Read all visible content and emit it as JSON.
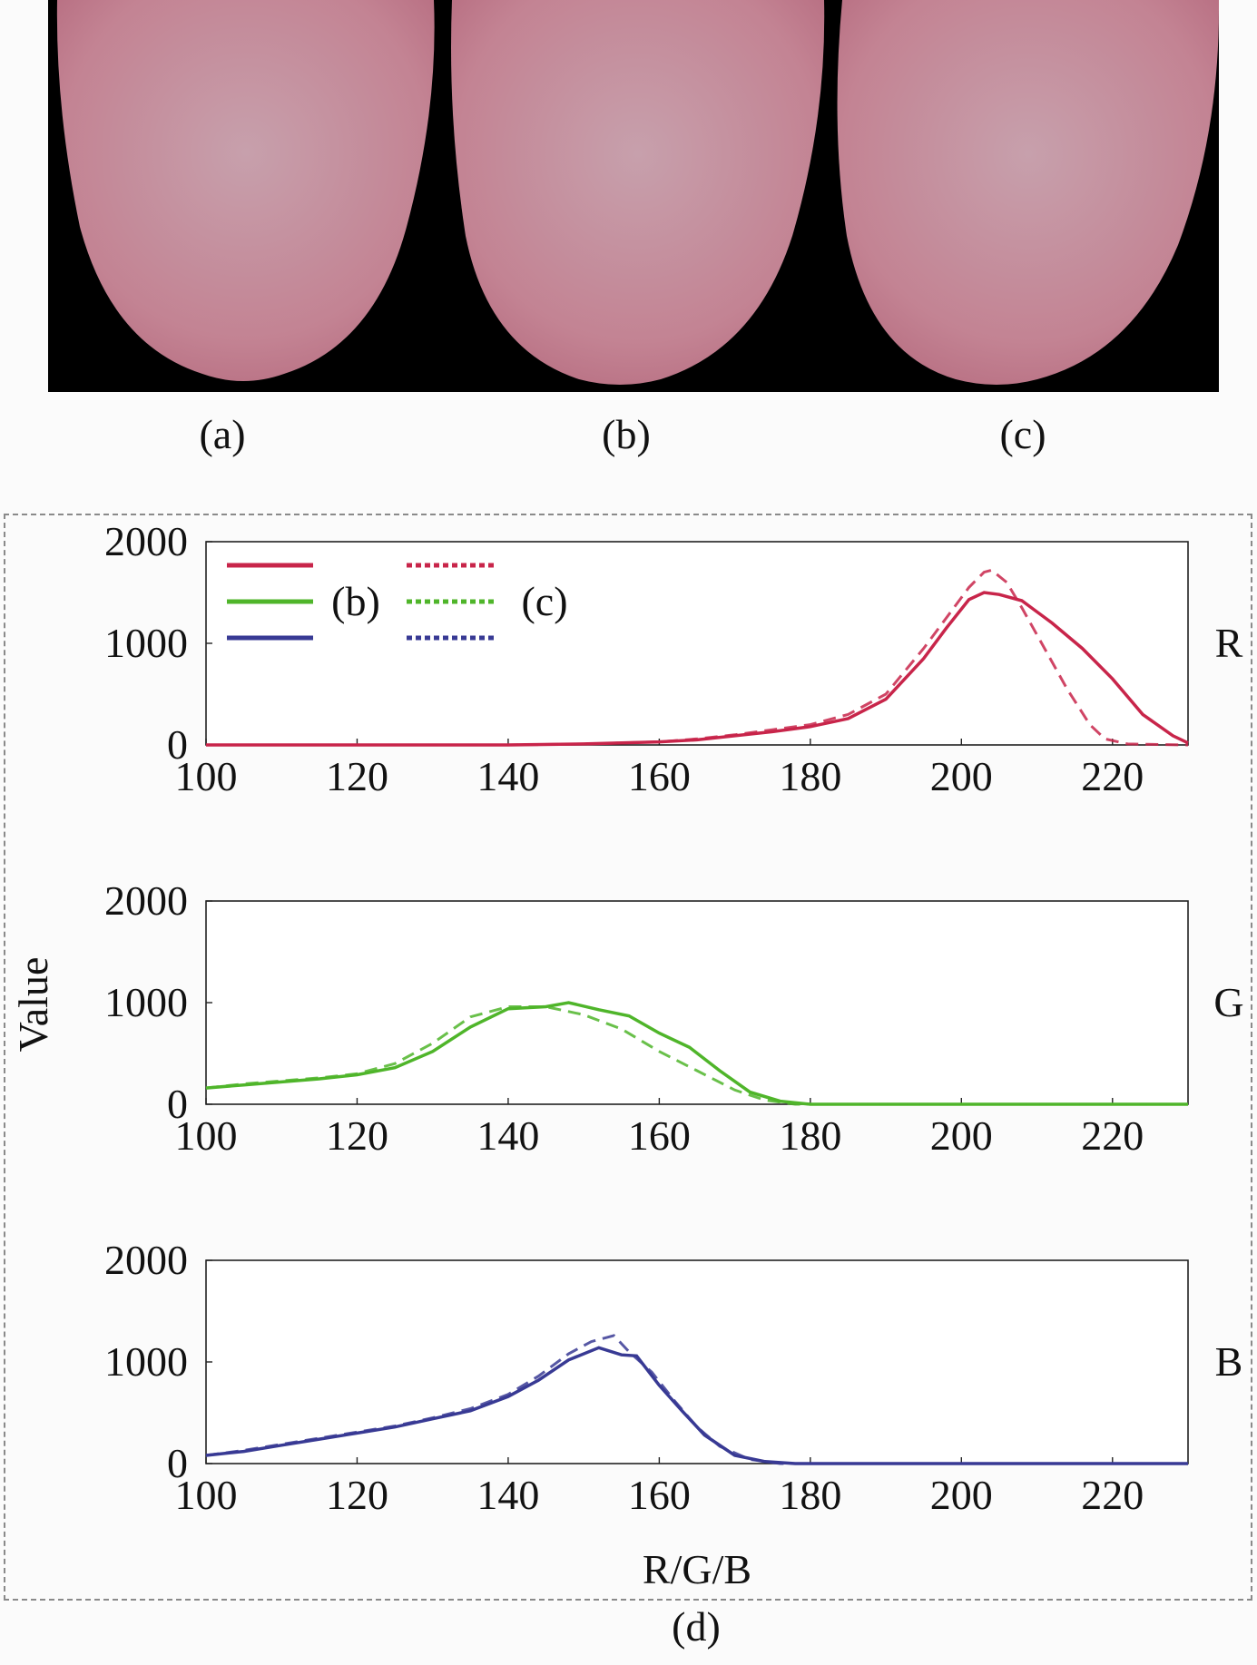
{
  "panels": {
    "a_label": "(a)",
    "b_label": "(b)",
    "c_label": "(c)",
    "d_label": "(d)"
  },
  "images": [
    {
      "id": "a",
      "description_icon": "tongue-photo-icon",
      "tint": "#c98090"
    },
    {
      "id": "b",
      "description_icon": "tongue-photo-icon",
      "tint": "#c8889a"
    },
    {
      "id": "c",
      "description_icon": "tongue-photo-icon",
      "tint": "#d08898"
    }
  ],
  "chart_data": {
    "type": "line",
    "ylabel": "Value",
    "xlabel": "R/G/B",
    "xlim": [
      100,
      230
    ],
    "ylim": [
      0,
      2000
    ],
    "xticks": [
      100,
      120,
      140,
      160,
      180,
      200,
      220
    ],
    "yticks": [
      0,
      1000,
      2000
    ],
    "legend": {
      "position": "top-left",
      "labels": [
        "(b)",
        "(c)"
      ]
    },
    "panels": [
      {
        "channel": "R",
        "color": "#c8254a",
        "series": [
          {
            "name": "(b)",
            "style": "solid",
            "x": [
              100,
              120,
              140,
              150,
              160,
              165,
              170,
              175,
              180,
              185,
              190,
              195,
              198,
              201,
              203,
              205,
              208,
              212,
              216,
              220,
              224,
              228,
              230
            ],
            "values": [
              0,
              0,
              0,
              10,
              30,
              50,
              90,
              130,
              180,
              260,
              450,
              850,
              1150,
              1430,
              1500,
              1480,
              1420,
              1200,
              950,
              650,
              300,
              90,
              20
            ]
          },
          {
            "name": "(c)",
            "style": "dashed",
            "x": [
              100,
              120,
              140,
              150,
              160,
              165,
              170,
              175,
              180,
              185,
              190,
              195,
              198,
              201,
              203,
              204,
              206,
              208,
              211,
              214,
              217,
              219,
              222,
              230
            ],
            "values": [
              0,
              0,
              0,
              10,
              30,
              60,
              100,
              150,
              200,
              300,
              500,
              950,
              1250,
              1550,
              1700,
              1720,
              1600,
              1350,
              950,
              550,
              200,
              60,
              10,
              0
            ]
          }
        ]
      },
      {
        "channel": "G",
        "color": "#4fb52a",
        "series": [
          {
            "name": "(b)",
            "style": "solid",
            "x": [
              100,
              105,
              110,
              115,
              120,
              125,
              130,
              135,
              140,
              145,
              148,
              152,
              156,
              160,
              164,
              168,
              172,
              176,
              180,
              185,
              230
            ],
            "values": [
              160,
              190,
              220,
              250,
              290,
              360,
              520,
              760,
              940,
              960,
              1000,
              930,
              870,
              700,
              560,
              330,
              120,
              30,
              0,
              0,
              0
            ]
          },
          {
            "name": "(c)",
            "style": "dashed",
            "x": [
              100,
              105,
              110,
              115,
              120,
              125,
              130,
              135,
              140,
              145,
              150,
              155,
              160,
              165,
              170,
              174,
              178,
              182,
              230
            ],
            "values": [
              160,
              200,
              230,
              260,
              300,
              400,
              600,
              860,
              960,
              960,
              880,
              740,
              520,
              330,
              140,
              40,
              0,
              0,
              0
            ]
          }
        ]
      },
      {
        "channel": "B",
        "color": "#383a94",
        "series": [
          {
            "name": "(b)",
            "style": "solid",
            "x": [
              100,
              105,
              110,
              115,
              120,
              125,
              130,
              135,
              140,
              144,
              148,
              152,
              155,
              157,
              160,
              163,
              166,
              170,
              174,
              178,
              230
            ],
            "values": [
              80,
              120,
              180,
              240,
              300,
              360,
              440,
              520,
              660,
              820,
              1020,
              1140,
              1070,
              1060,
              770,
              520,
              280,
              80,
              20,
              0,
              0
            ]
          },
          {
            "name": "(c)",
            "style": "dashed",
            "x": [
              100,
              105,
              110,
              115,
              120,
              125,
              130,
              135,
              140,
              144,
              148,
              151,
              154,
              156,
              159,
              162,
              165,
              168,
              172,
              176,
              230
            ],
            "values": [
              80,
              130,
              190,
              250,
              310,
              370,
              450,
              540,
              680,
              860,
              1080,
              1200,
              1260,
              1100,
              900,
              620,
              360,
              170,
              40,
              0,
              0
            ]
          }
        ]
      }
    ]
  }
}
